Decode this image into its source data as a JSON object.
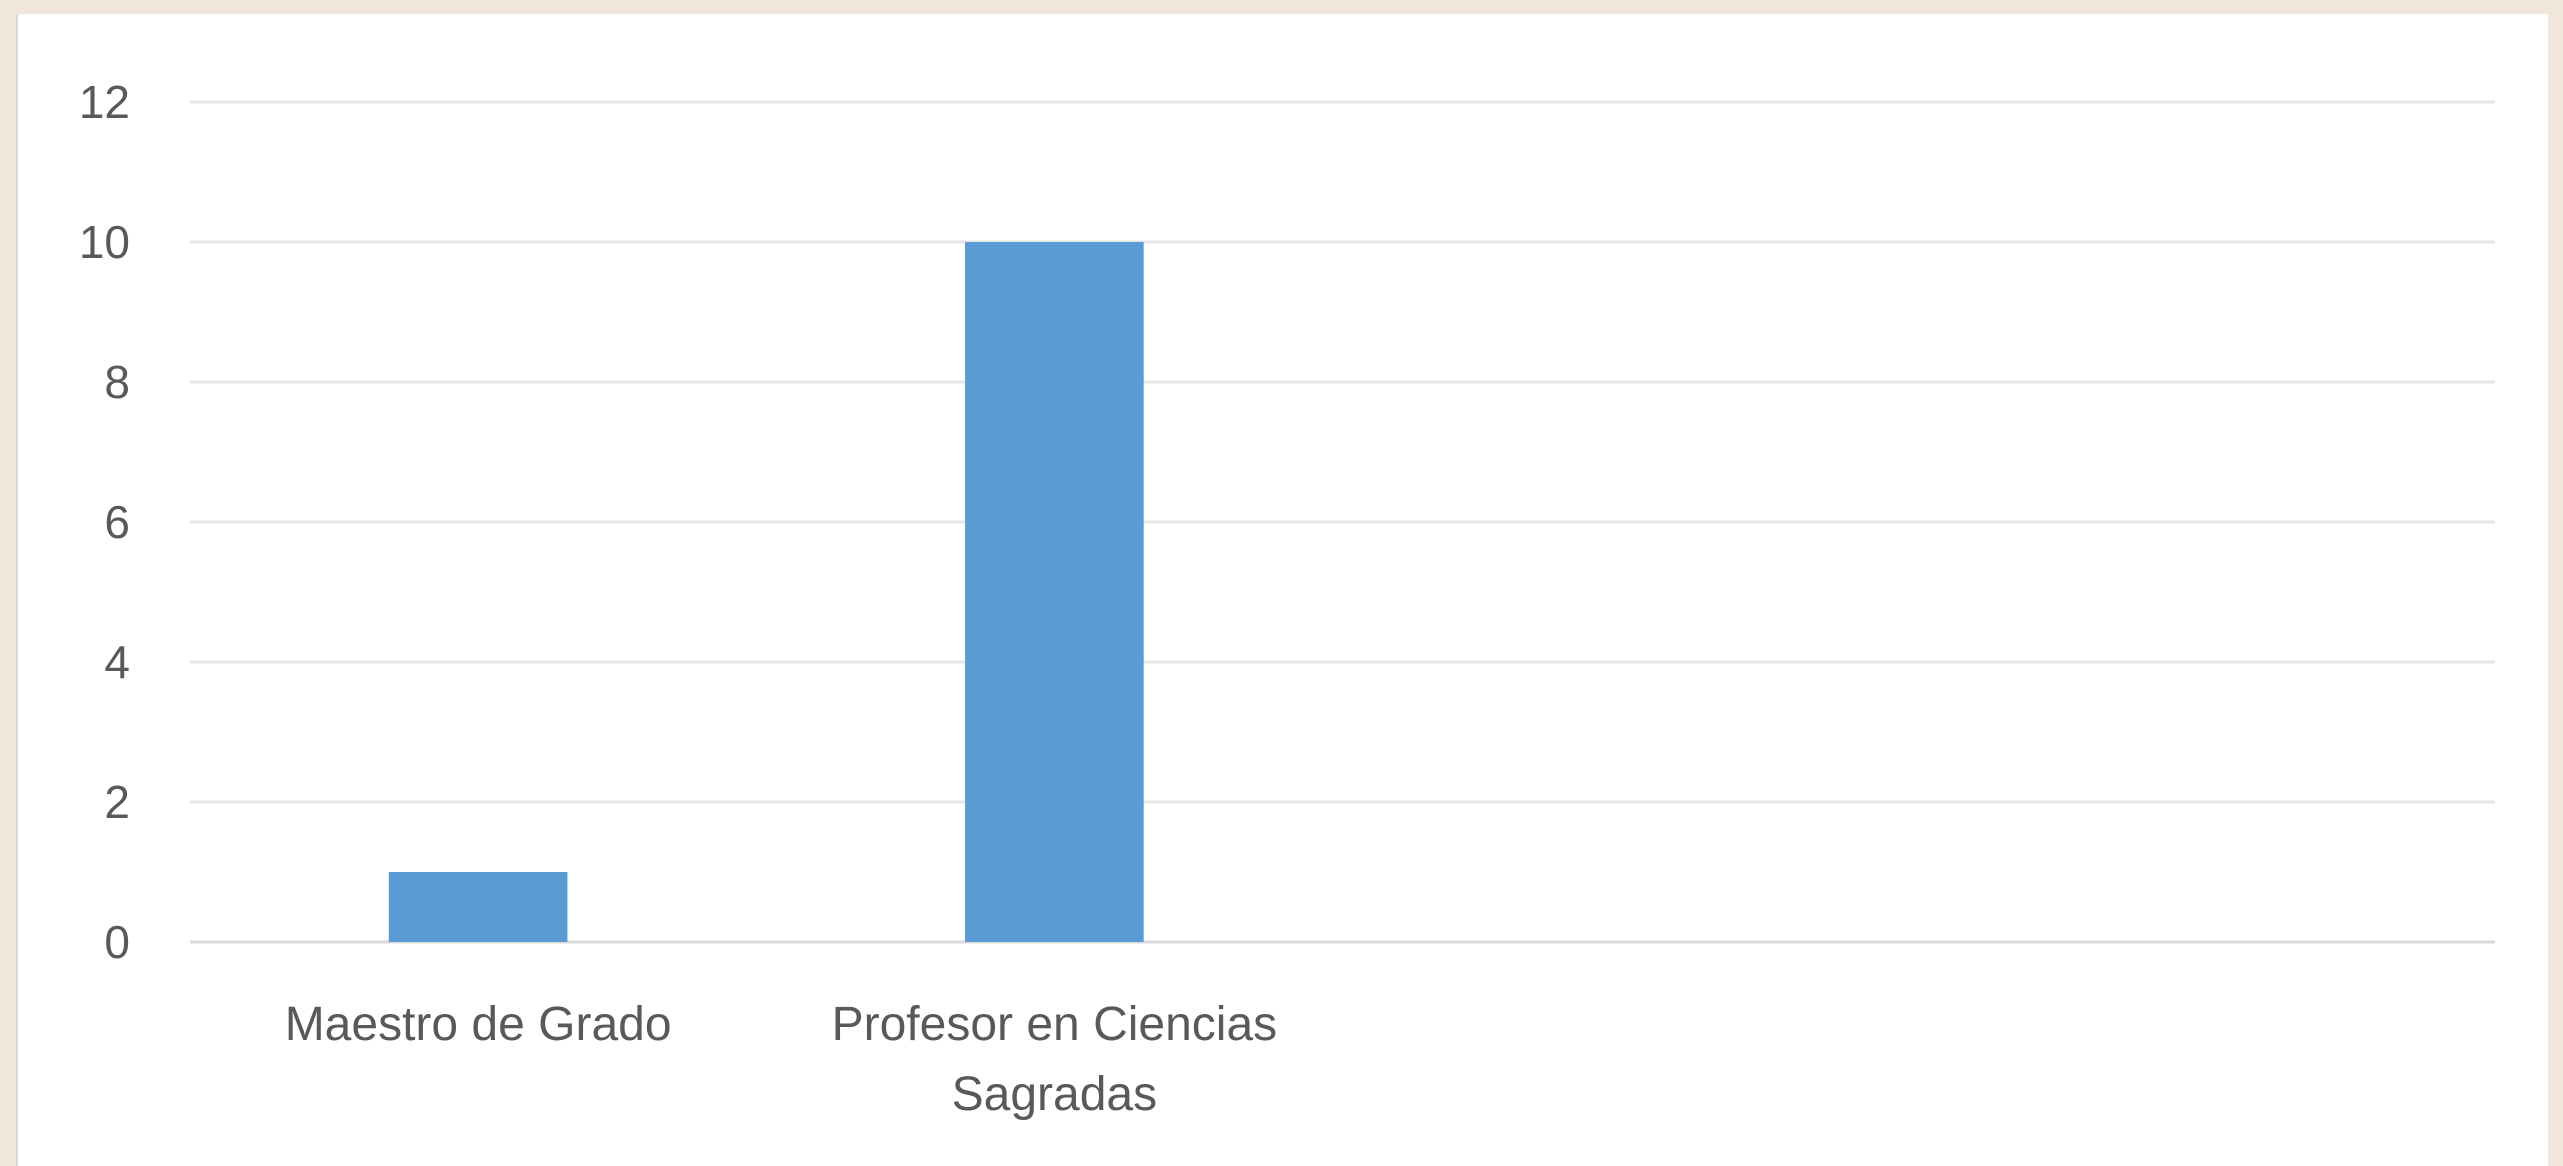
{
  "chart_data": {
    "type": "bar",
    "title": "",
    "xlabel": "",
    "ylabel": "",
    "categories": [
      [
        "Maestro de Grado"
      ],
      [
        "Profesor en Ciencias",
        "Sagradas"
      ]
    ],
    "values": [
      1,
      10
    ],
    "ylim": [
      0,
      12
    ],
    "yticks": [
      "0",
      "2",
      "4",
      "6",
      "8",
      "10",
      "12"
    ],
    "grid": true,
    "legend": "none",
    "colors": {
      "bar": "#5b9bd5",
      "grid": "#e6e6e6",
      "text": "#595959",
      "background": "#ffffff",
      "frame": "#f0e6dc"
    }
  }
}
